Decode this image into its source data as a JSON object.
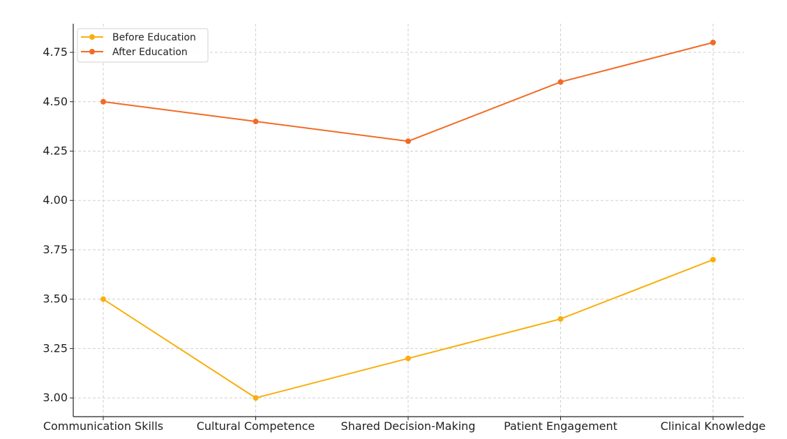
{
  "chart_data": {
    "type": "line",
    "title": "",
    "xlabel": "",
    "ylabel": "",
    "categories": [
      "Communication Skills",
      "Cultural Competence",
      "Shared Decision-Making",
      "Patient Engagement",
      "Clinical Knowledge"
    ],
    "series": [
      {
        "name": "Before Education",
        "values": [
          3.5,
          3.0,
          3.2,
          3.4,
          3.7
        ],
        "color": "#F9AE0E"
      },
      {
        "name": "After Education",
        "values": [
          4.5,
          4.4,
          4.3,
          4.6,
          4.8
        ],
        "color": "#F26A25"
      }
    ],
    "ylim": [
      2.905,
      4.895
    ],
    "yticks": [
      "3.00",
      "3.25",
      "3.50",
      "3.75",
      "4.00",
      "4.25",
      "4.50",
      "4.75"
    ],
    "grid": true,
    "legend_position": "top-left"
  }
}
